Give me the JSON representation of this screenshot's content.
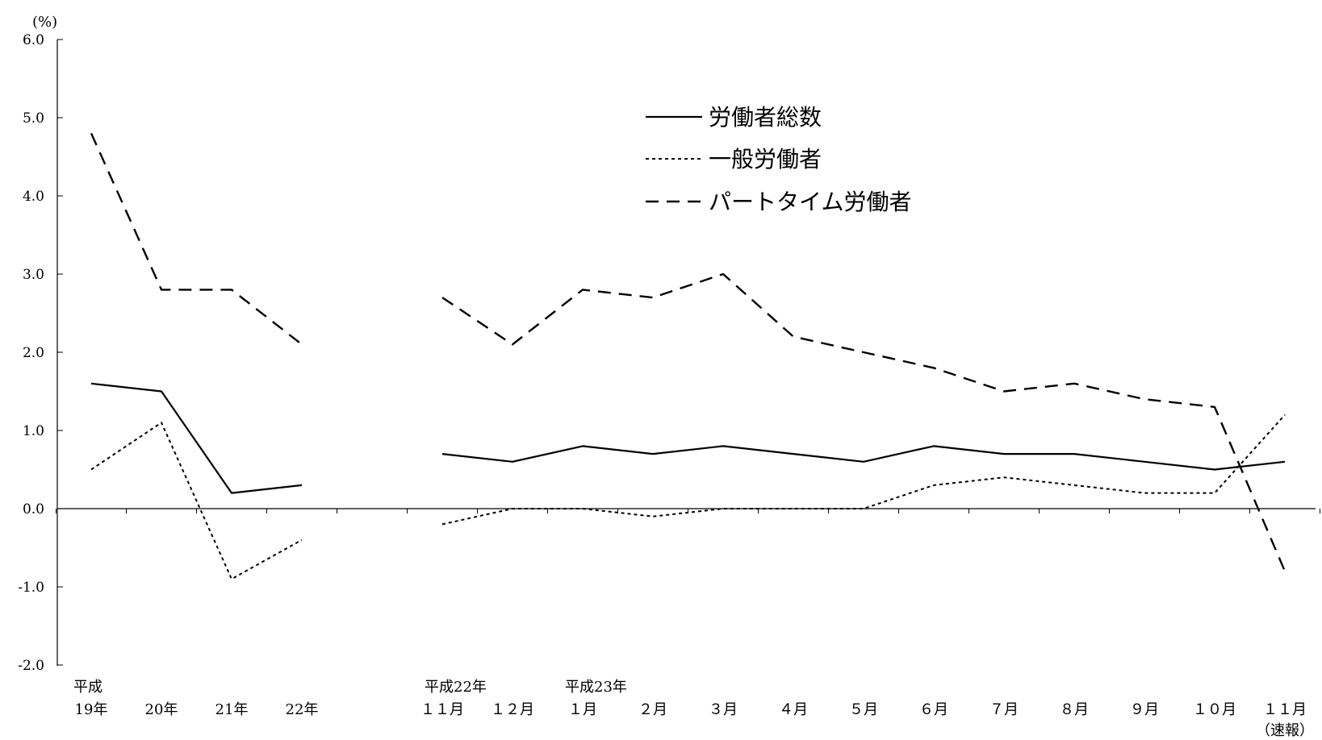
{
  "chart_data": {
    "type": "line",
    "y_unit": "(%)",
    "ylim": [
      -2.0,
      6.0
    ],
    "yticks": [
      "6.0",
      "5.0",
      "4.0",
      "3.0",
      "2.0",
      "1.0",
      "0.0",
      "-1.0",
      "-2.0"
    ],
    "ytick_values": [
      6,
      5,
      4,
      3,
      2,
      1,
      0,
      -1,
      -2
    ],
    "categories": [
      {
        "top": "平成",
        "bottom": "19年"
      },
      {
        "top": "",
        "bottom": "20年"
      },
      {
        "top": "",
        "bottom": "21年"
      },
      {
        "top": "",
        "bottom": "22年"
      },
      {
        "top": "",
        "bottom": ""
      },
      {
        "top": "平成22年",
        "bottom": "１１月"
      },
      {
        "top": "",
        "bottom": "１２月"
      },
      {
        "top": "平成23年",
        "bottom": "１月"
      },
      {
        "top": "",
        "bottom": "２月"
      },
      {
        "top": "",
        "bottom": "３月"
      },
      {
        "top": "",
        "bottom": "４月"
      },
      {
        "top": "",
        "bottom": "５月"
      },
      {
        "top": "",
        "bottom": "６月"
      },
      {
        "top": "",
        "bottom": "７月"
      },
      {
        "top": "",
        "bottom": "８月"
      },
      {
        "top": "",
        "bottom": "９月"
      },
      {
        "top": "",
        "bottom": "１０月"
      },
      {
        "top": "",
        "bottom": "１１月",
        "extra": "（速報）"
      }
    ],
    "series": [
      {
        "name": "労働者総数",
        "style": "solid",
        "values": [
          1.6,
          1.5,
          0.2,
          0.3,
          null,
          0.7,
          0.6,
          0.8,
          0.7,
          0.8,
          0.7,
          0.6,
          0.8,
          0.7,
          0.7,
          0.6,
          0.5,
          0.6
        ]
      },
      {
        "name": "一般労働者",
        "style": "dotted",
        "values": [
          0.5,
          1.1,
          -0.9,
          -0.4,
          null,
          -0.2,
          0.0,
          0.0,
          -0.1,
          0.0,
          0.0,
          0.0,
          0.3,
          0.4,
          0.3,
          0.2,
          0.2,
          1.2
        ]
      },
      {
        "name": "パートタイム労働者",
        "style": "dashed",
        "values": [
          4.8,
          2.8,
          2.8,
          2.1,
          null,
          2.7,
          2.1,
          2.8,
          2.7,
          3.0,
          2.2,
          2.0,
          1.8,
          1.5,
          1.6,
          1.4,
          1.3,
          -0.8
        ]
      }
    ],
    "legend_position": "top-center",
    "grid": false
  }
}
